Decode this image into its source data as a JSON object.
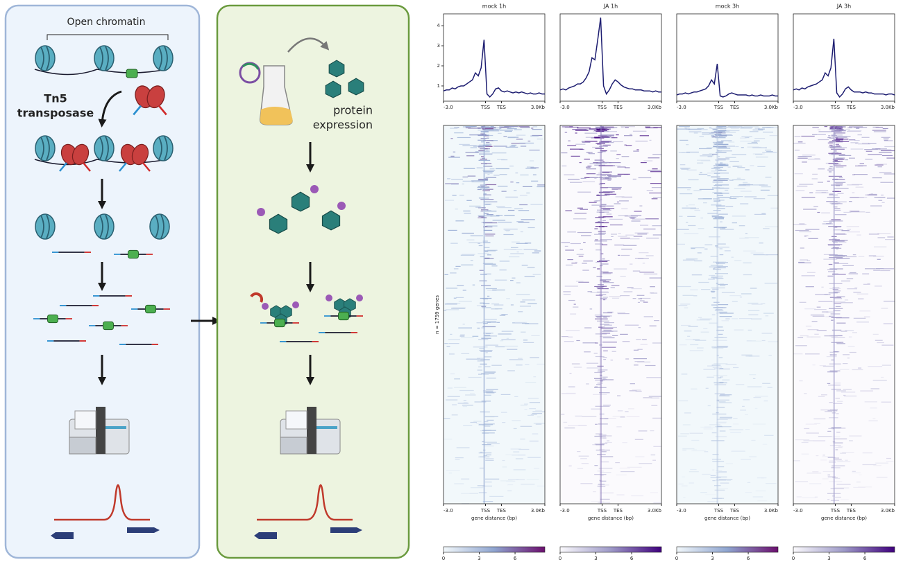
{
  "diagram": {
    "open_chromatin": "Open chromatin",
    "tn5_label": [
      "Tn5",
      "transposase"
    ],
    "expression_label": [
      "protein",
      "expression"
    ]
  },
  "heatmap": {
    "ylabel": "n = 1759 genes",
    "xlabel": "gene distance (bp)",
    "colorbar_lim": [
      0,
      8.5
    ],
    "colorbar_ticks": [
      0,
      3,
      6
    ]
  },
  "chart_data": [
    {
      "type": "line",
      "title": "mock 1h",
      "color": "#1c1c70",
      "heatmap_colors": [
        "#f2f8fb",
        "#8fa5d0",
        "#6b0f6e"
      ],
      "x": [
        0,
        2,
        4,
        6,
        8,
        10,
        12,
        14,
        16,
        18,
        20,
        22,
        24,
        26,
        28,
        30,
        32,
        34,
        36,
        38,
        40,
        42,
        44,
        46,
        48,
        50,
        52,
        54,
        56,
        58,
        60,
        62,
        64,
        66,
        68,
        70
      ],
      "values": [
        0.75,
        0.8,
        0.8,
        0.9,
        0.85,
        0.95,
        1.0,
        1.0,
        1.1,
        1.2,
        1.3,
        1.65,
        1.5,
        1.9,
        3.3,
        0.6,
        0.45,
        0.6,
        0.85,
        0.9,
        0.75,
        0.7,
        0.75,
        0.7,
        0.65,
        0.7,
        0.65,
        0.7,
        0.65,
        0.6,
        0.65,
        0.6,
        0.6,
        0.65,
        0.6,
        0.6
      ],
      "xlim": [
        0,
        70
      ],
      "xticks": [
        {
          "value": 0,
          "label": "-3.0"
        },
        {
          "value": 29,
          "label": "TSS"
        },
        {
          "value": 40,
          "label": "TES"
        },
        {
          "value": 70,
          "label": "3.0Kb"
        }
      ],
      "ylim": [
        0.24,
        4.59
      ],
      "yticks": [
        1,
        2,
        3,
        4
      ]
    },
    {
      "type": "line",
      "title": "JA 1h",
      "color": "#1c1c70",
      "heatmap_colors": [
        "#fbfafd",
        "#9e9ac8",
        "#3f007d"
      ],
      "x": [
        0,
        2,
        4,
        6,
        8,
        10,
        12,
        14,
        16,
        18,
        20,
        22,
        24,
        26,
        28,
        30,
        32,
        34,
        36,
        38,
        40,
        42,
        44,
        46,
        48,
        50,
        52,
        54,
        56,
        58,
        60,
        62,
        64,
        66,
        68,
        70
      ],
      "values": [
        0.8,
        0.85,
        0.8,
        0.9,
        0.95,
        1.0,
        1.1,
        1.1,
        1.2,
        1.4,
        1.7,
        2.4,
        2.3,
        3.3,
        4.4,
        1.0,
        0.6,
        0.8,
        1.1,
        1.3,
        1.2,
        1.05,
        0.95,
        0.9,
        0.85,
        0.85,
        0.8,
        0.8,
        0.8,
        0.75,
        0.75,
        0.75,
        0.7,
        0.75,
        0.7,
        0.7
      ],
      "xlim": [
        0,
        70
      ],
      "xticks": [
        {
          "value": 0,
          "label": "-3.0"
        },
        {
          "value": 29,
          "label": "TSS"
        },
        {
          "value": 40,
          "label": "TES"
        },
        {
          "value": 70,
          "label": "3.0Kb"
        }
      ],
      "ylim": [
        0.24,
        4.59
      ]
    },
    {
      "type": "line",
      "title": "mock 3h",
      "color": "#1c1c70",
      "heatmap_colors": [
        "#f2f8fb",
        "#8fa5d0",
        "#6b0f6e"
      ],
      "x": [
        0,
        2,
        4,
        6,
        8,
        10,
        12,
        14,
        16,
        18,
        20,
        22,
        24,
        26,
        28,
        30,
        32,
        34,
        36,
        38,
        40,
        42,
        44,
        46,
        48,
        50,
        52,
        54,
        56,
        58,
        60,
        62,
        64,
        66,
        68,
        70
      ],
      "values": [
        0.55,
        0.6,
        0.6,
        0.65,
        0.6,
        0.65,
        0.7,
        0.7,
        0.75,
        0.8,
        0.85,
        1.0,
        1.3,
        1.1,
        2.1,
        0.5,
        0.45,
        0.5,
        0.6,
        0.65,
        0.6,
        0.55,
        0.55,
        0.55,
        0.55,
        0.5,
        0.55,
        0.5,
        0.5,
        0.55,
        0.5,
        0.5,
        0.5,
        0.55,
        0.5,
        0.5
      ],
      "xlim": [
        0,
        70
      ],
      "xticks": [
        {
          "value": 0,
          "label": "-3.0"
        },
        {
          "value": 29,
          "label": "TSS"
        },
        {
          "value": 40,
          "label": "TES"
        },
        {
          "value": 70,
          "label": "3.0Kb"
        }
      ],
      "ylim": [
        0.24,
        4.59
      ]
    },
    {
      "type": "line",
      "title": "JA 3h",
      "color": "#1c1c70",
      "heatmap_colors": [
        "#fbfafd",
        "#9e9ac8",
        "#3f007d"
      ],
      "x": [
        0,
        2,
        4,
        6,
        8,
        10,
        12,
        14,
        16,
        18,
        20,
        22,
        24,
        26,
        28,
        30,
        32,
        34,
        36,
        38,
        40,
        42,
        44,
        46,
        48,
        50,
        52,
        54,
        56,
        58,
        60,
        62,
        64,
        66,
        68,
        70
      ],
      "values": [
        0.8,
        0.85,
        0.8,
        0.9,
        0.85,
        0.95,
        1.0,
        1.05,
        1.1,
        1.2,
        1.3,
        1.65,
        1.5,
        1.9,
        3.35,
        0.65,
        0.45,
        0.6,
        0.85,
        0.95,
        0.8,
        0.7,
        0.7,
        0.7,
        0.65,
        0.7,
        0.65,
        0.65,
        0.6,
        0.6,
        0.6,
        0.6,
        0.55,
        0.6,
        0.6,
        0.55
      ],
      "xlim": [
        0,
        70
      ],
      "xticks": [
        {
          "value": 0,
          "label": "-3.0"
        },
        {
          "value": 29,
          "label": "TSS"
        },
        {
          "value": 40,
          "label": "TES"
        },
        {
          "value": 70,
          "label": "3.0Kb"
        }
      ],
      "ylim": [
        0.24,
        4.59
      ]
    }
  ]
}
